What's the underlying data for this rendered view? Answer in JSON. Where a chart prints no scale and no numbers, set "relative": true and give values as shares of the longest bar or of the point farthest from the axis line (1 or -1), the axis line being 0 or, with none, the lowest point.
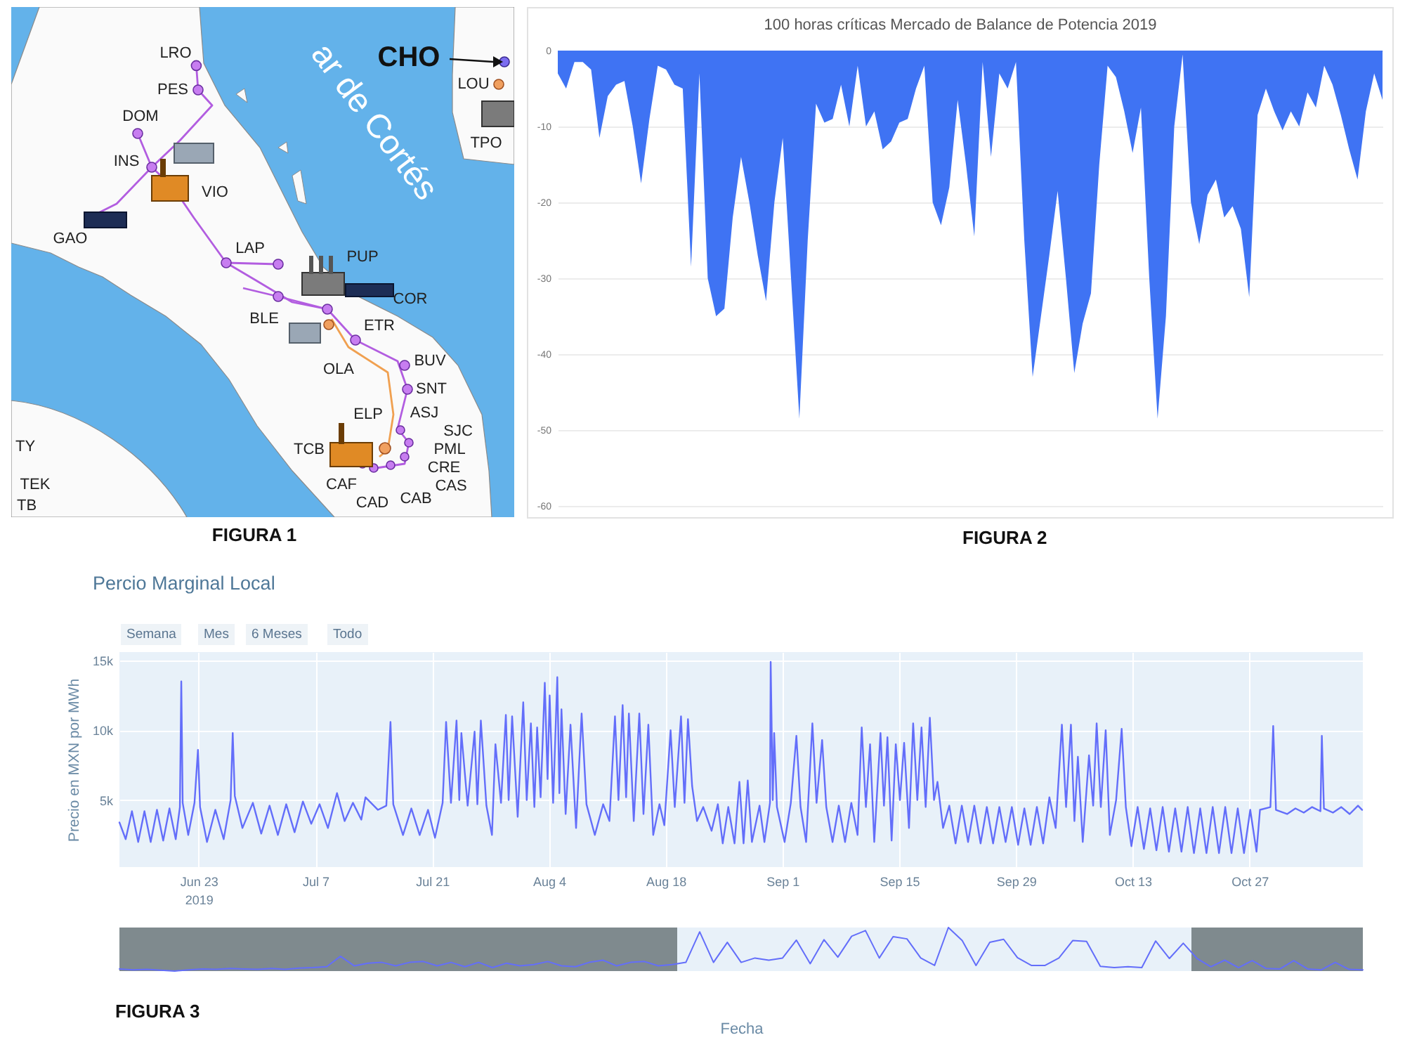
{
  "chart_data": [
    {
      "type": "other",
      "annotations": [
        "ar de Cortés",
        "CHO",
        "LRO",
        "PES",
        "LOU",
        "DOM",
        "TPO",
        "INS",
        "VIO",
        "GAO",
        "LAP",
        "PUP",
        "COR",
        "BLE",
        "ETR",
        "BUV",
        "OLA",
        "SNT",
        "ASJ",
        "ELP",
        "SJC",
        "TY",
        "TCB",
        "PML",
        "CRE",
        "TEK",
        "CAF",
        "CAS",
        "CAB",
        "CAD",
        "TB",
        "FIGURA 1"
      ]
    },
    {
      "type": "area",
      "title": "100 horas críticas Mercado de Balance de Potencia 2019",
      "categories": [
        null,
        null,
        null,
        null,
        null,
        null,
        null,
        null,
        null,
        null,
        null,
        null,
        null,
        null,
        null,
        null,
        null,
        null,
        null,
        null,
        null,
        null,
        null,
        null,
        null,
        null,
        null,
        null,
        null,
        null,
        null,
        null,
        null,
        null,
        null,
        null,
        null,
        null,
        null,
        null,
        null,
        null,
        null,
        null,
        null,
        null,
        null,
        null,
        null,
        null,
        null,
        null,
        null,
        null,
        null,
        null,
        null,
        null,
        null,
        null,
        null,
        null,
        null,
        null,
        null,
        null,
        null,
        null,
        null,
        null,
        null,
        null,
        null,
        null,
        null,
        null,
        null,
        null,
        null,
        null,
        null,
        null,
        null,
        null,
        null,
        null,
        null,
        null,
        null,
        null,
        null,
        null,
        null,
        null,
        null,
        null,
        null,
        null,
        null,
        null
      ],
      "values": [
        -3,
        -5,
        -1.5,
        -1.5,
        -2.5,
        -11.5,
        -6,
        -4.5,
        -4,
        -10,
        -17.5,
        -9,
        -2,
        -2.5,
        -4.5,
        -5,
        -28.5,
        -3,
        -30,
        -35,
        -34,
        -22,
        -14,
        -20,
        -27,
        -33,
        -20,
        -11.5,
        -30,
        -48.5,
        -25,
        -7,
        -9.5,
        -9,
        -4.5,
        -10,
        -2,
        -10,
        -8,
        -13,
        -12,
        -9.5,
        -9,
        -5,
        -2,
        -20,
        -23,
        -18,
        -6.5,
        -15,
        -24.5,
        -1.5,
        -14,
        -3,
        -5,
        -1.5,
        -25,
        -43,
        -35,
        -27,
        -18.5,
        -30,
        -42.5,
        -36,
        -32,
        -15,
        -2,
        -3.5,
        -8,
        -13.5,
        -7.5,
        -30,
        -48.5,
        -35,
        -10,
        -0.5,
        -20,
        -25.5,
        -19,
        -17,
        -22,
        -20.5,
        -23.5,
        -32.5,
        -8.5,
        -5,
        -8,
        -10.5,
        -8,
        -10,
        -5.5,
        -7.5,
        -2,
        -4.5,
        -8.5,
        -13,
        -17,
        -8,
        -3,
        -6.5
      ],
      "color": "#3f73f3",
      "ylim": [
        -60,
        0
      ],
      "yticks": [
        0,
        -10,
        -20,
        -30,
        -40,
        -50,
        -60
      ],
      "grid": "y",
      "annotations": [
        "FIGURA 2"
      ]
    },
    {
      "type": "line",
      "title": "Percio Marginal Local",
      "ylabel": "Precio en MXN por MWh",
      "color": "#636efa",
      "x": [
        "2019-06-13T12:00",
        "2019-06-14T06:00",
        "2019-06-15T00:00",
        "2019-06-15T18:00",
        "2019-06-16T12:00",
        "2019-06-17T06:00",
        "2019-06-18T00:00",
        "2019-06-18T18:00",
        "2019-06-19T12:00",
        "2019-06-20T06:00",
        "2019-06-20T18:00",
        "2019-06-20T22:00",
        "2019-06-21T02:00",
        "2019-06-21T18:00",
        "2019-06-22T12:00",
        "2019-06-22T22:00",
        "2019-06-23T04:00",
        "2019-06-24T00:00",
        "2019-06-25T00:00",
        "2019-06-26T00:00",
        "2019-06-26T20:00",
        "2019-06-27T02:00",
        "2019-06-27T08:00",
        "2019-06-28T06:00",
        "2019-06-29T12:00",
        "2019-06-30T12:00",
        "2019-07-01T12:00",
        "2019-07-02T12:00",
        "2019-07-03T12:00",
        "2019-07-04T12:00",
        "2019-07-05T12:00",
        "2019-07-06T12:00",
        "2019-07-07T12:00",
        "2019-07-08T12:00",
        "2019-07-09T14:00",
        "2019-07-10T12:00",
        "2019-07-11T12:00",
        "2019-07-12T12:00",
        "2019-07-13T00:00",
        "2019-07-14T12:00",
        "2019-07-15T12:00",
        "2019-07-16T00:00",
        "2019-07-16T08:00",
        "2019-07-17T12:00",
        "2019-07-18T12:00",
        "2019-07-19T12:00",
        "2019-07-20T12:00",
        "2019-07-21T08:00",
        "2019-07-22T06:00",
        "2019-07-22T16:00",
        "2019-07-23T06:00",
        "2019-07-23T22:00",
        "2019-07-24T06:00",
        "2019-07-24T12:00",
        "2019-07-25T06:00",
        "2019-07-26T02:00",
        "2019-07-26T10:00",
        "2019-07-26T20:00",
        "2019-07-27T12:00",
        "2019-07-28T04:00",
        "2019-07-28T14:00",
        "2019-07-29T06:00",
        "2019-07-29T20:00",
        "2019-07-30T04:00",
        "2019-07-30T14:00",
        "2019-07-31T06:00",
        "2019-07-31T22:00",
        "2019-08-01T08:00",
        "2019-08-01T20:00",
        "2019-08-02T06:00",
        "2019-08-02T14:00",
        "2019-08-03T00:00",
        "2019-08-03T12:00",
        "2019-08-03T20:00",
        "2019-08-04T02:00",
        "2019-08-04T12:00",
        "2019-08-05T00:00",
        "2019-08-05T06:00",
        "2019-08-05T12:00",
        "2019-08-06T00:00",
        "2019-08-06T14:00",
        "2019-08-07T06:00",
        "2019-08-07T22:00",
        "2019-08-08T12:00",
        "2019-08-09T12:00",
        "2019-08-10T12:00",
        "2019-08-11T06:00",
        "2019-08-11T22:00",
        "2019-08-12T08:00",
        "2019-08-12T20:00",
        "2019-08-13T06:00",
        "2019-08-13T14:00",
        "2019-08-14T04:00",
        "2019-08-14T20:00",
        "2019-08-15T08:00",
        "2019-08-15T22:00",
        "2019-08-16T12:00",
        "2019-08-17T06:00",
        "2019-08-17T20:00",
        "2019-08-18T14:00",
        "2019-08-19T02:00",
        "2019-08-19T20:00",
        "2019-08-20T06:00",
        "2019-08-20T16:00",
        "2019-08-21T04:00",
        "2019-08-21T18:00",
        "2019-08-22T12:00",
        "2019-08-23T12:00",
        "2019-08-24T06:00",
        "2019-08-24T20:00",
        "2019-08-25T12:00",
        "2019-08-26T06:00",
        "2019-08-26T20:00",
        "2019-08-27T08:00",
        "2019-08-27T20:00",
        "2019-08-28T08:00",
        "2019-08-29T06:00",
        "2019-08-29T20:00",
        "2019-08-30T12:00",
        "2019-08-30T14:00",
        "2019-08-30T20:00",
        "2019-08-31T00:00",
        "2019-08-31T08:00",
        "2019-09-01T06:00",
        "2019-09-02T00:00",
        "2019-09-02T16:00",
        "2019-09-03T04:00",
        "2019-09-03T20:00",
        "2019-09-04T14:00",
        "2019-09-05T02:00",
        "2019-09-05T18:00",
        "2019-09-06T06:00",
        "2019-09-07T00:00",
        "2019-09-07T18:00",
        "2019-09-08T12:00",
        "2019-09-09T06:00",
        "2019-09-10T00:00",
        "2019-09-10T12:00",
        "2019-09-11T00:00",
        "2019-09-11T12:00",
        "2019-09-12T00:00",
        "2019-09-12T18:00",
        "2019-09-13T04:00",
        "2019-09-13T14:00",
        "2019-09-14T02:00",
        "2019-09-14T14:00",
        "2019-09-15T02:00",
        "2019-09-15T14:00",
        "2019-09-16T04:00",
        "2019-09-16T16:00",
        "2019-09-17T04:00",
        "2019-09-17T16:00",
        "2019-09-18T04:00",
        "2019-09-18T16:00",
        "2019-09-19T04:00",
        "2019-09-19T14:00",
        "2019-09-20T06:00",
        "2019-09-21T00:00",
        "2019-09-21T18:00",
        "2019-09-22T12:00",
        "2019-09-23T06:00",
        "2019-09-24T00:00",
        "2019-09-24T18:00",
        "2019-09-25T12:00",
        "2019-09-26T06:00",
        "2019-09-27T00:00",
        "2019-09-27T18:00",
        "2019-09-28T12:00",
        "2019-09-29T06:00",
        "2019-09-30T00:00",
        "2019-09-30T18:00",
        "2019-10-01T12:00",
        "2019-10-02T06:00",
        "2019-10-03T00:00",
        "2019-10-03T18:00",
        "2019-10-04T12:00",
        "2019-10-05T00:00",
        "2019-10-05T14:00",
        "2019-10-06T00:00",
        "2019-10-06T10:00",
        "2019-10-07T00:00",
        "2019-10-07T18:00",
        "2019-10-08T06:00",
        "2019-10-08T16:00",
        "2019-10-09T04:00",
        "2019-10-09T18:00",
        "2019-10-10T06:00",
        "2019-10-11T00:00",
        "2019-10-11T16:00",
        "2019-10-12T04:00",
        "2019-10-12T20:00",
        "2019-10-13T14:00",
        "2019-10-14T08:00",
        "2019-10-15T02:00",
        "2019-10-15T20:00",
        "2019-10-16T14:00",
        "2019-10-17T08:00",
        "2019-10-18T02:00",
        "2019-10-18T20:00",
        "2019-10-19T14:00",
        "2019-10-20T08:00",
        "2019-10-21T02:00",
        "2019-10-21T20:00",
        "2019-10-22T14:00",
        "2019-10-23T08:00",
        "2019-10-24T02:00",
        "2019-10-24T20:00",
        "2019-10-25T14:00",
        "2019-10-26T08:00",
        "2019-10-27T02:00",
        "2019-10-27T20:00",
        "2019-10-28T06:00",
        "2019-10-29T12:00",
        "2019-10-29T20:00",
        "2019-10-30T04:00",
        "2019-10-31T12:00",
        "2019-11-01T12:00",
        "2019-11-02T12:00",
        "2019-11-03T12:00",
        "2019-11-04T12:00",
        "2019-11-04T16:00",
        "2019-11-04T22:00",
        "2019-11-06T00:00",
        "2019-11-07T00:00",
        "2019-11-08T00:00",
        "2019-11-09T00:00",
        "2019-11-09T12:00"
      ],
      "values": [
        3400,
        2200,
        4200,
        2000,
        4200,
        2000,
        4300,
        2100,
        4400,
        2200,
        4500,
        13500,
        4800,
        2500,
        4800,
        8600,
        4500,
        2000,
        4300,
        2200,
        5000,
        9800,
        5300,
        3000,
        4800,
        2600,
        4600,
        2500,
        4700,
        2700,
        4900,
        3300,
        4700,
        3000,
        5500,
        3500,
        4800,
        3600,
        5200,
        4300,
        4600,
        10600,
        4700,
        2500,
        4400,
        2500,
        4300,
        2300,
        4800,
        10600,
        4800,
        10700,
        5000,
        9800,
        4600,
        9900,
        4700,
        10700,
        4600,
        2500,
        9000,
        4800,
        11100,
        5000,
        11000,
        3800,
        12000,
        5000,
        10500,
        4500,
        10200,
        5200,
        13400,
        6500,
        12500,
        4800,
        13800,
        5500,
        11500,
        4000,
        10400,
        3000,
        11200,
        4700,
        2500,
        4700,
        3500,
        11000,
        5000,
        11800,
        5200,
        11200,
        3500,
        11200,
        4000,
        10400,
        2500,
        4700,
        3200,
        10000,
        4500,
        11000,
        4800,
        10800,
        6000,
        3500,
        4500,
        2800,
        4700,
        1900,
        4500,
        1900,
        6300,
        1900,
        6400,
        2000,
        4600,
        2000,
        4800,
        14900,
        5000,
        9800,
        4500,
        2000,
        4800,
        9600,
        4500,
        2000,
        10500,
        4800,
        9300,
        4500,
        2000,
        4600,
        2000,
        4800,
        2500,
        10200,
        4500,
        9000,
        2000,
        9800,
        4600,
        9500,
        2100,
        9000,
        5000,
        9100,
        3000,
        10500,
        5000,
        10200,
        4500,
        10900,
        5000,
        6300,
        3000,
        4600,
        1900,
        4600,
        2000,
        4600,
        1900,
        4500,
        1900,
        4500,
        2000,
        4500,
        1800,
        4400,
        1800,
        4500,
        1900,
        5200,
        3000,
        10400,
        4500,
        10400,
        3500,
        8100,
        2000,
        8200,
        4600,
        10500,
        4500,
        10000,
        2500,
        5000,
        10100,
        4500,
        1700,
        4500,
        1500,
        4400,
        1400,
        4500,
        1300,
        4400,
        1300,
        4500,
        1200,
        4400,
        1200,
        4500,
        1200,
        4500,
        1200,
        4400,
        1200,
        4300,
        1300,
        4300,
        4500,
        10300,
        4300,
        4000,
        4400,
        4100,
        4500,
        4200,
        9600,
        4400,
        4100,
        4500,
        4000,
        4600,
        4300
      ],
      "xlim": [
        "2019-06-13T12:00",
        "2019-11-09T14:00"
      ],
      "xticks": [
        {
          "value": "2019-06-23",
          "label": "Jun 23\n2019"
        },
        {
          "value": "2019-07-07",
          "label": "Jul 7"
        },
        {
          "value": "2019-07-21",
          "label": "Jul 21"
        },
        {
          "value": "2019-08-04",
          "label": "Aug 4"
        },
        {
          "value": "2019-08-18",
          "label": "Aug 18"
        },
        {
          "value": "2019-09-01",
          "label": "Sep 1"
        },
        {
          "value": "2019-09-15",
          "label": "Sep 15"
        },
        {
          "value": "2019-09-29",
          "label": "Sep 29"
        },
        {
          "value": "2019-10-13",
          "label": "Oct 13"
        },
        {
          "value": "2019-10-27",
          "label": "Oct 27"
        }
      ],
      "ylim": [
        200,
        15600
      ],
      "yticks": [
        {
          "value": 5000,
          "label": "5k"
        },
        {
          "value": 10000,
          "label": "10k"
        },
        {
          "value": 15000,
          "label": "15k"
        }
      ],
      "grid": true,
      "annotations": [
        "Semana",
        "Mes",
        "6 Meses",
        "Todo"
      ]
    },
    {
      "type": "line",
      "relative": true,
      "xlabel": "Fecha",
      "color": "#636efa",
      "categories": [
        null,
        null,
        null,
        null,
        null,
        null,
        null,
        null,
        null,
        null,
        null,
        null,
        null,
        null,
        null,
        null,
        null,
        null,
        null,
        null,
        null,
        null,
        null,
        null,
        null,
        null,
        null,
        null,
        null,
        null,
        null,
        null,
        null,
        null,
        null,
        null,
        null,
        null,
        null,
        null,
        null,
        null,
        null,
        null,
        null,
        null,
        null,
        null,
        null,
        null,
        null,
        null,
        null,
        null,
        null,
        null,
        null,
        null,
        null,
        null,
        null,
        null,
        null,
        null,
        null,
        null,
        null,
        null,
        null,
        null,
        null,
        null,
        null,
        null,
        null,
        null,
        null,
        null,
        null,
        null,
        null,
        null,
        null,
        null,
        null,
        null,
        null,
        null,
        null,
        null,
        null
      ],
      "values": [
        0.05,
        0.03,
        0.04,
        0.02,
        0,
        0.03,
        0.05,
        0.04,
        0.06,
        0.05,
        0.04,
        0.06,
        0.04,
        0.07,
        0.08,
        0.1,
        0.34,
        0.12,
        0.18,
        0.2,
        0.12,
        0.2,
        0.22,
        0.12,
        0.2,
        0.1,
        0.2,
        0.08,
        0.18,
        0.12,
        0.15,
        0.22,
        0.12,
        0.1,
        0.2,
        0.25,
        0.12,
        0.2,
        0.22,
        0.12,
        0.15,
        0.2,
        0.9,
        0.2,
        0.66,
        0.2,
        0.3,
        0.25,
        0.3,
        0.71,
        0.17,
        0.72,
        0.32,
        0.8,
        0.93,
        0.3,
        0.79,
        0.74,
        0.3,
        0.13,
        1,
        0.7,
        0.13,
        0.66,
        0.73,
        0.31,
        0.13,
        0.13,
        0.3,
        0.7,
        0.68,
        0.11,
        0.08,
        0.1,
        0.08,
        0.69,
        0.29,
        0.64,
        0.29,
        0.1,
        0.25,
        0.08,
        0.24,
        0.06,
        0.05,
        0.24,
        0.05,
        0.03,
        0.2,
        0.04,
        0.03
      ],
      "annotations": [
        "FIGURA 3"
      ]
    }
  ]
}
